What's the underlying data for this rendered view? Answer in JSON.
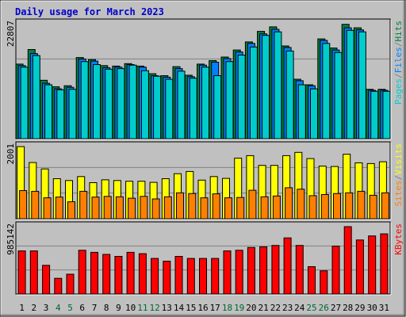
{
  "chart_data": {
    "type": "bar",
    "title": "Daily usage for March 2023",
    "categories": [
      "1",
      "2",
      "3",
      "4",
      "5",
      "6",
      "7",
      "8",
      "9",
      "10",
      "11",
      "12",
      "13",
      "14",
      "15",
      "16",
      "17",
      "18",
      "19",
      "20",
      "21",
      "22",
      "23",
      "24",
      "25",
      "26",
      "27",
      "28",
      "29",
      "30",
      "31"
    ],
    "weekend_days": [
      "4",
      "5",
      "11",
      "12",
      "18",
      "19",
      "25",
      "26"
    ],
    "panels": [
      {
        "max_label": "22807",
        "ymax": 22807,
        "legend": [
          "Pages",
          "/",
          "Files",
          "/",
          "Hits"
        ],
        "legend_colors": [
          "#00cccc",
          "#808080",
          "#0080ff",
          "#808080",
          "#008040"
        ],
        "series": [
          {
            "name": "Hits",
            "color": "#008040",
            "values": [
              14800,
              17700,
              11600,
              10300,
              10500,
              16100,
              15700,
              14500,
              14400,
              14900,
              14400,
              12900,
              12500,
              14300,
              12600,
              14800,
              15500,
              16200,
              17600,
              19200,
              21300,
              22200,
              18400,
              11800,
              10700,
              19800,
              18000,
              22700,
              22000,
              9800,
              9800
            ]
          },
          {
            "name": "Files",
            "color": "#0080ff",
            "values": [
              14500,
              16900,
              11000,
              9900,
              10200,
              15800,
              15400,
              14100,
              14200,
              14700,
              14200,
              12500,
              12200,
              13900,
              12300,
              14600,
              15200,
              15900,
              17200,
              18900,
              20800,
              21700,
              18100,
              11500,
              10500,
              19500,
              17600,
              22000,
              21600,
              9600,
              9600
            ]
          },
          {
            "name": "Pages",
            "color": "#00cccc",
            "values": [
              14200,
              16500,
              10700,
              9700,
              9800,
              15300,
              14700,
              13800,
              13900,
              14600,
              13500,
              12400,
              11800,
              13400,
              12000,
              14200,
              12500,
              15300,
              16600,
              18200,
              20500,
              21200,
              17400,
              10700,
              9900,
              18900,
              17100,
              21500,
              21200,
              9400,
              9400
            ]
          }
        ]
      },
      {
        "max_label": "2001",
        "ymax": 2001,
        "legend": [
          "Sites",
          "/",
          "Visits"
        ],
        "legend_colors": [
          "#ff8000",
          "#808080",
          "#ffff00"
        ],
        "series": [
          {
            "name": "Visits",
            "color": "#ffff00",
            "values": [
              2001,
              1560,
              1380,
              1110,
              1060,
              1170,
              1000,
              1080,
              1060,
              1040,
              1040,
              1010,
              1110,
              1250,
              1310,
              1070,
              1170,
              1120,
              1680,
              1750,
              1480,
              1480,
              1750,
              1840,
              1670,
              1460,
              1450,
              1790,
              1550,
              1530,
              1580
            ]
          },
          {
            "name": "Sites",
            "color": "#ff8000",
            "values": [
              780,
              760,
              580,
              600,
              470,
              760,
              600,
              620,
              610,
              570,
              620,
              550,
              610,
              720,
              700,
              580,
              690,
              580,
              590,
              790,
              610,
              630,
              860,
              820,
              640,
              670,
              700,
              720,
              760,
              650,
              720
            ]
          }
        ]
      },
      {
        "max_label": "985142",
        "ymax": 985142,
        "legend": [
          "KBytes"
        ],
        "legend_colors": [
          "#ff0000"
        ],
        "series": [
          {
            "name": "KBytes",
            "color": "#ff0000",
            "values": [
              630000,
              630000,
              420000,
              230000,
              290000,
              640000,
              610000,
              580000,
              550000,
              610000,
              590000,
              520000,
              480000,
              550000,
              520000,
              520000,
              520000,
              630000,
              640000,
              680000,
              690000,
              710000,
              820000,
              710000,
              400000,
              340000,
              700000,
              985000,
              790000,
              850000,
              880000
            ]
          }
        ]
      }
    ]
  }
}
